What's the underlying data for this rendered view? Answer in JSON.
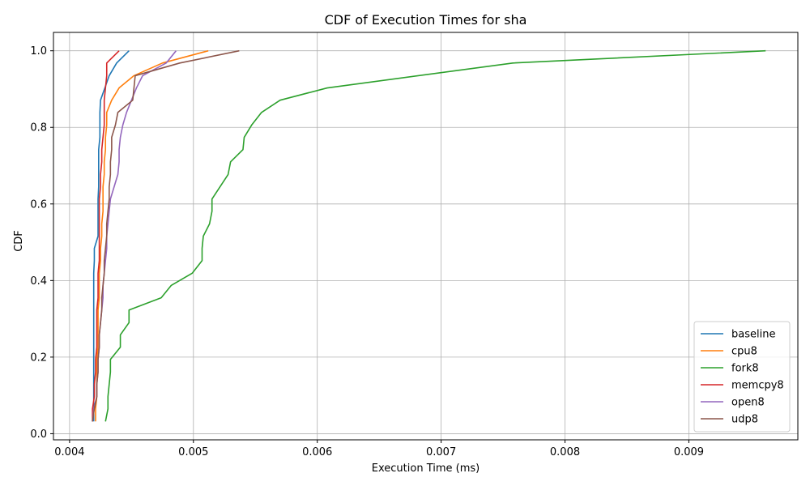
{
  "chart_data": {
    "type": "line",
    "title": "CDF of Execution Times for sha",
    "xlabel": "Execution Time (ms)",
    "ylabel": "CDF",
    "xlim": [
      0.00387,
      0.00988
    ],
    "ylim": [
      -0.016,
      1.048
    ],
    "xticks": [
      0.004,
      0.005,
      0.006,
      0.007,
      0.008,
      0.009
    ],
    "xtick_labels": [
      "0.004",
      "0.005",
      "0.006",
      "0.007",
      "0.008",
      "0.009"
    ],
    "yticks": [
      0.0,
      0.2,
      0.4,
      0.6,
      0.8,
      1.0
    ],
    "ytick_labels": [
      "0.0",
      "0.2",
      "0.4",
      "0.6",
      "0.8",
      "1.0"
    ],
    "grid": true,
    "legend_position": "lower-right",
    "series": [
      {
        "name": "baseline",
        "color": "#1f77b4",
        "points": [
          [
            0.004195,
            0.032
          ],
          [
            0.004195,
            0.065
          ],
          [
            0.004195,
            0.097
          ],
          [
            0.004195,
            0.129
          ],
          [
            0.004195,
            0.161
          ],
          [
            0.004195,
            0.194
          ],
          [
            0.004195,
            0.226
          ],
          [
            0.004195,
            0.258
          ],
          [
            0.004195,
            0.29
          ],
          [
            0.004195,
            0.323
          ],
          [
            0.004195,
            0.355
          ],
          [
            0.004195,
            0.387
          ],
          [
            0.004195,
            0.419
          ],
          [
            0.0042,
            0.452
          ],
          [
            0.0042,
            0.484
          ],
          [
            0.00423,
            0.516
          ],
          [
            0.00423,
            0.548
          ],
          [
            0.00423,
            0.581
          ],
          [
            0.00423,
            0.613
          ],
          [
            0.004235,
            0.645
          ],
          [
            0.004235,
            0.677
          ],
          [
            0.004235,
            0.71
          ],
          [
            0.004235,
            0.742
          ],
          [
            0.004245,
            0.774
          ],
          [
            0.004245,
            0.806
          ],
          [
            0.004245,
            0.839
          ],
          [
            0.00425,
            0.871
          ],
          [
            0.00432,
            0.935
          ],
          [
            0.00438,
            0.968
          ],
          [
            0.00448,
            1.0
          ]
        ]
      },
      {
        "name": "cpu8",
        "color": "#ff7f0e",
        "points": [
          [
            0.00421,
            0.032
          ],
          [
            0.00421,
            0.065
          ],
          [
            0.00422,
            0.097
          ],
          [
            0.00422,
            0.129
          ],
          [
            0.00422,
            0.161
          ],
          [
            0.00422,
            0.194
          ],
          [
            0.00423,
            0.226
          ],
          [
            0.00423,
            0.258
          ],
          [
            0.00423,
            0.29
          ],
          [
            0.00423,
            0.323
          ],
          [
            0.00424,
            0.355
          ],
          [
            0.00424,
            0.387
          ],
          [
            0.00424,
            0.419
          ],
          [
            0.00425,
            0.452
          ],
          [
            0.00425,
            0.484
          ],
          [
            0.00426,
            0.516
          ],
          [
            0.00426,
            0.548
          ],
          [
            0.00427,
            0.581
          ],
          [
            0.00427,
            0.613
          ],
          [
            0.00427,
            0.645
          ],
          [
            0.00428,
            0.677
          ],
          [
            0.00428,
            0.71
          ],
          [
            0.00429,
            0.742
          ],
          [
            0.00429,
            0.774
          ],
          [
            0.0043,
            0.806
          ],
          [
            0.0043,
            0.839
          ],
          [
            0.00434,
            0.871
          ],
          [
            0.0044,
            0.903
          ],
          [
            0.00452,
            0.935
          ],
          [
            0.00475,
            0.968
          ],
          [
            0.00512,
            1.0
          ]
        ]
      },
      {
        "name": "fork8",
        "color": "#2ca02c",
        "points": [
          [
            0.00429,
            0.032
          ],
          [
            0.00431,
            0.065
          ],
          [
            0.00431,
            0.097
          ],
          [
            0.00432,
            0.129
          ],
          [
            0.00433,
            0.161
          ],
          [
            0.00433,
            0.194
          ],
          [
            0.00441,
            0.226
          ],
          [
            0.00441,
            0.258
          ],
          [
            0.00448,
            0.29
          ],
          [
            0.00448,
            0.323
          ],
          [
            0.00474,
            0.355
          ],
          [
            0.00482,
            0.387
          ],
          [
            0.00499,
            0.419
          ],
          [
            0.00507,
            0.452
          ],
          [
            0.00507,
            0.484
          ],
          [
            0.00508,
            0.516
          ],
          [
            0.00513,
            0.548
          ],
          [
            0.00515,
            0.581
          ],
          [
            0.00515,
            0.613
          ],
          [
            0.00528,
            0.677
          ],
          [
            0.0053,
            0.71
          ],
          [
            0.0054,
            0.742
          ],
          [
            0.00541,
            0.774
          ],
          [
            0.00547,
            0.806
          ],
          [
            0.00555,
            0.839
          ],
          [
            0.0057,
            0.871
          ],
          [
            0.00608,
            0.903
          ],
          [
            0.00758,
            0.968
          ],
          [
            0.00962,
            1.0
          ]
        ]
      },
      {
        "name": "memcpy8",
        "color": "#d62728",
        "points": [
          [
            0.004185,
            0.032
          ],
          [
            0.004185,
            0.065
          ],
          [
            0.0042,
            0.097
          ],
          [
            0.0042,
            0.129
          ],
          [
            0.00421,
            0.161
          ],
          [
            0.00421,
            0.194
          ],
          [
            0.00422,
            0.226
          ],
          [
            0.00422,
            0.258
          ],
          [
            0.00422,
            0.29
          ],
          [
            0.00422,
            0.323
          ],
          [
            0.00423,
            0.355
          ],
          [
            0.00423,
            0.387
          ],
          [
            0.00423,
            0.419
          ],
          [
            0.00424,
            0.452
          ],
          [
            0.00424,
            0.484
          ],
          [
            0.00424,
            0.516
          ],
          [
            0.00424,
            0.548
          ],
          [
            0.00424,
            0.581
          ],
          [
            0.00424,
            0.613
          ],
          [
            0.00425,
            0.645
          ],
          [
            0.00425,
            0.677
          ],
          [
            0.00426,
            0.71
          ],
          [
            0.00426,
            0.742
          ],
          [
            0.00427,
            0.774
          ],
          [
            0.00428,
            0.806
          ],
          [
            0.00428,
            0.839
          ],
          [
            0.00428,
            0.871
          ],
          [
            0.00429,
            0.903
          ],
          [
            0.0043,
            0.935
          ],
          [
            0.0043,
            0.968
          ],
          [
            0.0044,
            1.0
          ]
        ]
      },
      {
        "name": "open8",
        "color": "#9467bd",
        "points": [
          [
            0.004185,
            0.032
          ],
          [
            0.004195,
            0.065
          ],
          [
            0.00422,
            0.097
          ],
          [
            0.00422,
            0.129
          ],
          [
            0.00423,
            0.161
          ],
          [
            0.00423,
            0.194
          ],
          [
            0.00424,
            0.226
          ],
          [
            0.00424,
            0.258
          ],
          [
            0.00425,
            0.29
          ],
          [
            0.00426,
            0.323
          ],
          [
            0.00427,
            0.355
          ],
          [
            0.00427,
            0.387
          ],
          [
            0.00428,
            0.419
          ],
          [
            0.00429,
            0.452
          ],
          [
            0.0043,
            0.484
          ],
          [
            0.0043,
            0.516
          ],
          [
            0.00431,
            0.548
          ],
          [
            0.00432,
            0.581
          ],
          [
            0.00433,
            0.613
          ],
          [
            0.00439,
            0.677
          ],
          [
            0.0044,
            0.71
          ],
          [
            0.0044,
            0.742
          ],
          [
            0.00441,
            0.774
          ],
          [
            0.00443,
            0.806
          ],
          [
            0.00446,
            0.839
          ],
          [
            0.0045,
            0.871
          ],
          [
            0.00454,
            0.903
          ],
          [
            0.00459,
            0.935
          ],
          [
            0.00478,
            0.968
          ],
          [
            0.00486,
            1.0
          ]
        ]
      },
      {
        "name": "udp8",
        "color": "#8c564b",
        "points": [
          [
            0.004185,
            0.032
          ],
          [
            0.0042,
            0.065
          ],
          [
            0.00422,
            0.097
          ],
          [
            0.00422,
            0.129
          ],
          [
            0.00423,
            0.161
          ],
          [
            0.00423,
            0.194
          ],
          [
            0.00424,
            0.226
          ],
          [
            0.00424,
            0.258
          ],
          [
            0.00425,
            0.29
          ],
          [
            0.00426,
            0.323
          ],
          [
            0.00426,
            0.355
          ],
          [
            0.00427,
            0.387
          ],
          [
            0.00428,
            0.419
          ],
          [
            0.00428,
            0.452
          ],
          [
            0.00429,
            0.484
          ],
          [
            0.0043,
            0.516
          ],
          [
            0.0043,
            0.548
          ],
          [
            0.00431,
            0.581
          ],
          [
            0.00432,
            0.613
          ],
          [
            0.00432,
            0.645
          ],
          [
            0.00433,
            0.677
          ],
          [
            0.00433,
            0.71
          ],
          [
            0.00434,
            0.742
          ],
          [
            0.00434,
            0.774
          ],
          [
            0.00437,
            0.806
          ],
          [
            0.00439,
            0.839
          ],
          [
            0.00451,
            0.871
          ],
          [
            0.00452,
            0.903
          ],
          [
            0.00453,
            0.935
          ],
          [
            0.00489,
            0.968
          ],
          [
            0.00537,
            1.0
          ]
        ]
      }
    ]
  }
}
